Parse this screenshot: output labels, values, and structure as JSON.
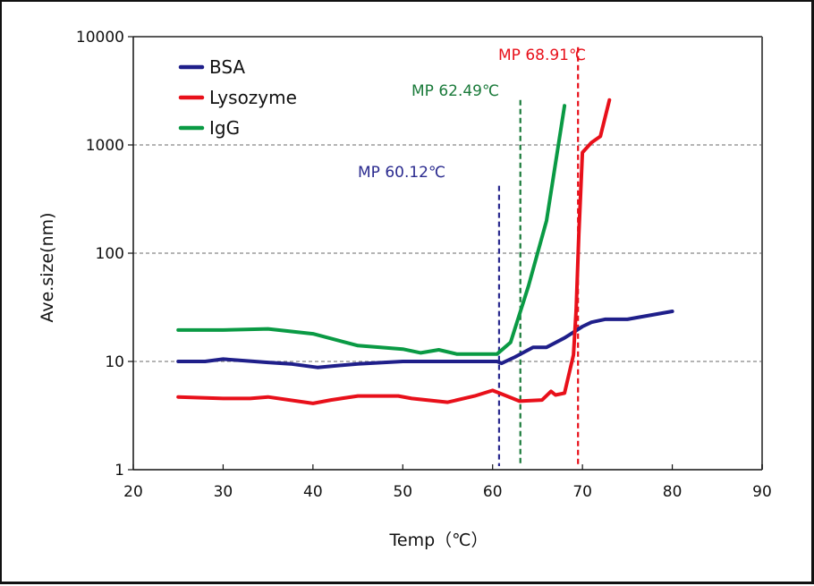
{
  "chart_data": {
    "type": "line",
    "title": "",
    "xlabel": "Temp（℃）",
    "ylabel": "Ave.size(nm)",
    "xlim": [
      20,
      90
    ],
    "ylim": [
      1,
      10000
    ],
    "yscale": "log",
    "xticks": [
      20,
      30,
      40,
      50,
      60,
      70,
      80,
      90
    ],
    "xtick_labels": [
      "20",
      "30",
      "40",
      "50",
      "60",
      "70",
      "80",
      "90"
    ],
    "yticks": [
      1,
      10,
      100,
      1000,
      10000
    ],
    "ytick_labels": [
      "1",
      "10",
      "100",
      "1000",
      "10000"
    ],
    "grid": "horizontal dashed at 10, 100, 1000",
    "legend_position": "top-left",
    "series": [
      {
        "name": "BSA",
        "color": "#1f1f8a",
        "x": [
          25,
          28,
          30,
          35,
          37.5,
          40.5,
          45,
          50,
          55,
          60.5,
          61,
          62.5,
          64.5,
          66,
          68,
          70,
          71,
          72.5,
          75,
          80
        ],
        "y": [
          10,
          10,
          10.5,
          9.8,
          9.5,
          8.8,
          9.5,
          10,
          10,
          10,
          9.6,
          11,
          13.5,
          13.5,
          16.5,
          21,
          23,
          24.5,
          24.5,
          29
        ]
      },
      {
        "name": "Lysozyme",
        "color": "#e8101a",
        "x": [
          25,
          30,
          33,
          35,
          40,
          42,
          45,
          47,
          49.5,
          51,
          55,
          58,
          60,
          61,
          63,
          65.5,
          66.5,
          67,
          68,
          69,
          69.3,
          69.6,
          70,
          71,
          72,
          73
        ],
        "y": [
          4.7,
          4.55,
          4.55,
          4.7,
          4.1,
          4.4,
          4.8,
          4.8,
          4.8,
          4.55,
          4.2,
          4.8,
          5.4,
          5.0,
          4.3,
          4.4,
          5.3,
          4.9,
          5.1,
          11.5,
          30,
          150,
          850,
          1050,
          1200,
          2600
        ]
      },
      {
        "name": "IgG",
        "color": "#0a9a44",
        "x": [
          25,
          30,
          35,
          40,
          45,
          50,
          52,
          54,
          56,
          60.5,
          62,
          64,
          66,
          68
        ],
        "y": [
          19.5,
          19.5,
          20,
          18,
          14,
          13,
          12,
          12.8,
          11.7,
          11.7,
          15,
          50,
          200,
          2300
        ]
      }
    ],
    "annotations": [
      {
        "text": "MP  60.12℃",
        "x": 60.12,
        "color": "#2b2b8f",
        "line_top_y": 420
      },
      {
        "text": "MP  62.49℃",
        "x": 62.49,
        "color": "#1a7a3a",
        "line_top_y": 2600
      },
      {
        "text": "MP  68.91℃",
        "x": 68.91,
        "color": "#e8101a",
        "line_top_y": 8000
      }
    ]
  }
}
